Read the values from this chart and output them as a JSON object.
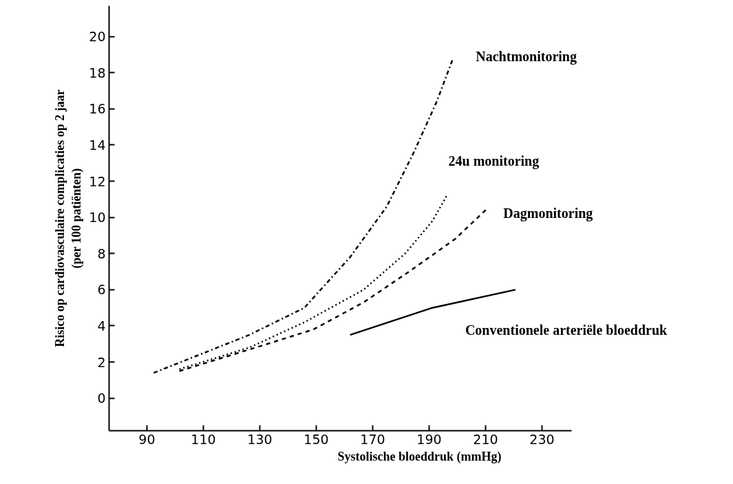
{
  "chart_data": {
    "type": "line",
    "xlabel": "Systolische bloeddruk (mmHg)",
    "ylabel": "Risico op cardiovasculaire complicaties op 2 jaar\n(per 100 patiënten)",
    "xlim": [
      76.6,
      240.5
    ],
    "ylim": [
      -1.8,
      21.7
    ],
    "xticks": [
      90,
      110,
      130,
      150,
      170,
      190,
      210,
      230
    ],
    "yticks": [
      0,
      2,
      4,
      6,
      8,
      10,
      12,
      14,
      16,
      18,
      20
    ],
    "grid": false,
    "legend": false,
    "marker": "none",
    "series": [
      {
        "name": "Nachtmonitoring",
        "color": "#000000",
        "line_style": "dashdot",
        "x": [
          92.4,
          126.3,
          145.8,
          162,
          175,
          184.6,
          192.7,
          198.5
        ],
        "values": [
          1.4,
          3.5,
          5.0,
          7.8,
          10.6,
          13.6,
          16.4,
          18.8
        ]
      },
      {
        "name": "24u monitoring",
        "color": "#000000",
        "line_style": "dotted",
        "x": [
          101.5,
          126.3,
          145.8,
          166.8,
          181.5,
          191.2,
          196.6
        ],
        "values": [
          1.6,
          2.8,
          4.2,
          6.0,
          8.0,
          9.8,
          11.3
        ]
      },
      {
        "name": "Dagmonitoring",
        "color": "#000000",
        "line_style": "dashed",
        "x": [
          101.5,
          132.7,
          149,
          166.8,
          182.9,
          199.2,
          210.7
        ],
        "values": [
          1.5,
          3.0,
          3.8,
          5.3,
          7.0,
          8.8,
          10.5
        ]
      },
      {
        "name": "Conventionele arteriële bloeddruk",
        "color": "#000000",
        "line_style": "solid",
        "x": [
          162,
          191.2,
          220.6
        ],
        "values": [
          3.5,
          5.0,
          6.0
        ]
      }
    ]
  }
}
